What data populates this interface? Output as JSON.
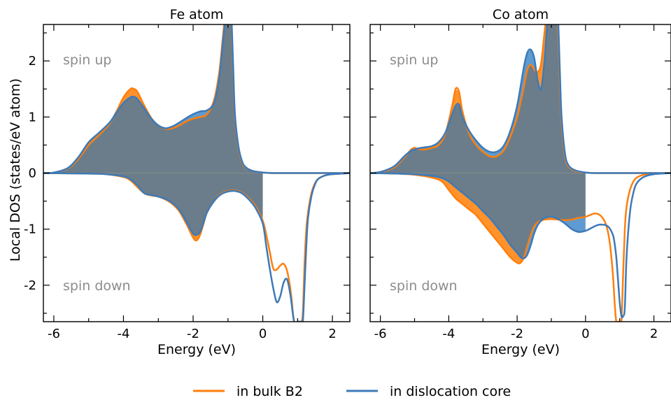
{
  "figure": {
    "ylabel": "Local DOS (states/eV atom)",
    "legend_placement": "bottom-center",
    "legend": [
      {
        "label": "in bulk B2",
        "color": "#ff7f0e"
      },
      {
        "label": "in dislocation core",
        "color": "#3d7ab8"
      }
    ]
  },
  "chart_data": [
    {
      "type": "line",
      "title": "Fe atom",
      "xlabel": "Energy (eV)",
      "ylabel": "Local DOS (states/eV atom)",
      "xlim": [
        -6.3,
        2.5
      ],
      "ylim": [
        -2.65,
        2.65
      ],
      "xticks": [
        -6,
        -4,
        -2,
        0,
        2
      ],
      "yticks": [
        -2,
        -1,
        0,
        1,
        2
      ],
      "xtick_labels": [
        "-6",
        "-4",
        "-2",
        "0",
        "2"
      ],
      "ytick_labels": [
        "-2",
        "-1",
        "0",
        "1",
        "2"
      ],
      "annotations": [
        "spin up",
        "spin down"
      ],
      "fermi_level": 0,
      "grid": false,
      "series": [
        {
          "name": "in bulk B2",
          "color": "#ff7f0e",
          "spin_up": {
            "x": [
              -6.3,
              -6.0,
              -5.6,
              -5.3,
              -5.0,
              -4.7,
              -4.4,
              -4.2,
              -4.0,
              -3.8,
              -3.7,
              -3.6,
              -3.4,
              -3.2,
              -3.0,
              -2.8,
              -2.6,
              -2.4,
              -2.2,
              -2.0,
              -1.8,
              -1.6,
              -1.4,
              -1.25,
              -1.15,
              -1.05,
              -1.0,
              -0.97,
              -0.93,
              -0.9,
              -0.85,
              -0.8,
              -0.7,
              -0.6,
              -0.5,
              -0.3,
              0.0,
              0.3,
              0.6,
              1.0,
              1.5,
              2.0,
              2.5
            ],
            "y": [
              0.0,
              0.01,
              0.08,
              0.25,
              0.5,
              0.68,
              0.88,
              1.1,
              1.35,
              1.5,
              1.5,
              1.45,
              1.2,
              0.98,
              0.85,
              0.79,
              0.8,
              0.85,
              0.92,
              0.97,
              1.0,
              1.05,
              1.3,
              1.8,
              2.4,
              3.0,
              3.0,
              3.0,
              3.0,
              2.7,
              1.8,
              1.0,
              0.45,
              0.2,
              0.1,
              0.04,
              0.01,
              0.0,
              0.0,
              0.0,
              0.0,
              0.0,
              0.0
            ]
          },
          "spin_down": {
            "x": [
              -6.3,
              -5.0,
              -4.5,
              -4.0,
              -3.8,
              -3.6,
              -3.4,
              -3.2,
              -3.0,
              -2.8,
              -2.6,
              -2.4,
              -2.2,
              -2.0,
              -1.9,
              -1.8,
              -1.7,
              -1.6,
              -1.4,
              -1.2,
              -1.0,
              -0.8,
              -0.6,
              -0.4,
              -0.2,
              0.0,
              0.1,
              0.2,
              0.3,
              0.4,
              0.5,
              0.6,
              0.7,
              0.8,
              0.9,
              1.0,
              1.05,
              1.1,
              1.15,
              1.2,
              1.25,
              1.3,
              1.4,
              1.5,
              1.6,
              1.8,
              2.0,
              2.5
            ],
            "y": [
              0.0,
              -0.01,
              -0.02,
              -0.07,
              -0.13,
              -0.25,
              -0.36,
              -0.4,
              -0.42,
              -0.47,
              -0.55,
              -0.68,
              -0.9,
              -1.15,
              -1.2,
              -1.1,
              -0.9,
              -0.7,
              -0.5,
              -0.37,
              -0.32,
              -0.31,
              -0.35,
              -0.45,
              -0.6,
              -0.85,
              -1.1,
              -1.4,
              -1.7,
              -1.72,
              -1.65,
              -1.62,
              -1.75,
              -2.1,
              -2.65,
              -2.65,
              -2.65,
              -2.65,
              -2.5,
              -1.6,
              -1.0,
              -0.7,
              -0.35,
              -0.18,
              -0.1,
              -0.04,
              -0.02,
              0.0
            ]
          }
        },
        {
          "name": "in dislocation core",
          "color": "#3d7ab8",
          "spin_up": {
            "x": [
              -6.3,
              -6.0,
              -5.6,
              -5.3,
              -5.0,
              -4.7,
              -4.4,
              -4.2,
              -4.0,
              -3.8,
              -3.7,
              -3.6,
              -3.4,
              -3.2,
              -3.0,
              -2.8,
              -2.6,
              -2.4,
              -2.2,
              -2.0,
              -1.8,
              -1.6,
              -1.4,
              -1.25,
              -1.15,
              -1.05,
              -1.0,
              -0.97,
              -0.93,
              -0.9,
              -0.85,
              -0.8,
              -0.7,
              -0.6,
              -0.5,
              -0.3,
              0.0,
              0.3,
              0.6,
              1.0,
              1.5,
              2.0,
              2.5
            ],
            "y": [
              0.0,
              0.01,
              0.09,
              0.28,
              0.55,
              0.72,
              0.9,
              1.08,
              1.25,
              1.35,
              1.36,
              1.32,
              1.15,
              0.97,
              0.85,
              0.8,
              0.83,
              0.9,
              0.98,
              1.05,
              1.1,
              1.12,
              1.25,
              1.7,
              2.3,
              2.9,
              3.0,
              3.0,
              3.0,
              2.8,
              1.9,
              1.05,
              0.48,
              0.22,
              0.11,
              0.04,
              0.01,
              0.0,
              0.0,
              0.0,
              0.0,
              0.0,
              0.0
            ]
          },
          "spin_down": {
            "x": [
              -6.3,
              -5.0,
              -4.5,
              -4.0,
              -3.8,
              -3.6,
              -3.4,
              -3.2,
              -3.0,
              -2.8,
              -2.6,
              -2.4,
              -2.2,
              -2.0,
              -1.9,
              -1.8,
              -1.7,
              -1.6,
              -1.4,
              -1.2,
              -1.0,
              -0.8,
              -0.6,
              -0.4,
              -0.2,
              0.0,
              0.1,
              0.2,
              0.3,
              0.4,
              0.5,
              0.6,
              0.7,
              0.8,
              0.9,
              1.0,
              1.05,
              1.1,
              1.15,
              1.2,
              1.25,
              1.3,
              1.4,
              1.5,
              1.6,
              1.8,
              2.0,
              2.5
            ],
            "y": [
              0.0,
              -0.01,
              -0.02,
              -0.06,
              -0.11,
              -0.22,
              -0.36,
              -0.39,
              -0.42,
              -0.46,
              -0.53,
              -0.65,
              -0.86,
              -1.08,
              -1.1,
              -1.05,
              -0.88,
              -0.7,
              -0.5,
              -0.38,
              -0.33,
              -0.32,
              -0.36,
              -0.47,
              -0.63,
              -0.9,
              -1.3,
              -1.7,
              -2.05,
              -2.3,
              -2.2,
              -1.95,
              -1.9,
              -2.2,
              -2.65,
              -2.65,
              -2.65,
              -2.65,
              -2.65,
              -2.0,
              -1.3,
              -0.8,
              -0.4,
              -0.2,
              -0.1,
              -0.04,
              -0.02,
              0.0
            ]
          }
        }
      ]
    },
    {
      "type": "line",
      "title": "Co atom",
      "xlabel": "Energy (eV)",
      "ylabel": "",
      "xlim": [
        -6.3,
        2.5
      ],
      "ylim": [
        -2.65,
        2.65
      ],
      "xticks": [
        -6,
        -4,
        -2,
        0,
        2
      ],
      "yticks": [
        -2,
        -1,
        0,
        1,
        2
      ],
      "xtick_labels": [
        "-6",
        "-4",
        "-2",
        "0",
        "2"
      ],
      "ytick_labels": [],
      "annotations": [
        "spin up",
        "spin down"
      ],
      "fermi_level": 0,
      "grid": false,
      "series": [
        {
          "name": "in bulk B2",
          "color": "#ff7f0e",
          "spin_up": {
            "x": [
              -6.3,
              -6.0,
              -5.6,
              -5.3,
              -5.1,
              -5.0,
              -4.9,
              -4.7,
              -4.5,
              -4.3,
              -4.1,
              -3.9,
              -3.8,
              -3.7,
              -3.6,
              -3.4,
              -3.2,
              -3.0,
              -2.8,
              -2.6,
              -2.4,
              -2.2,
              -2.0,
              -1.8,
              -1.7,
              -1.6,
              -1.5,
              -1.4,
              -1.3,
              -1.2,
              -1.1,
              -1.0,
              -0.95,
              -0.9,
              -0.85,
              -0.8,
              -0.75,
              -0.7,
              -0.6,
              -0.5,
              -0.3,
              0.0,
              0.3,
              0.6,
              1.0,
              1.5,
              2.0,
              2.5
            ],
            "y": [
              0.0,
              0.02,
              0.1,
              0.28,
              0.42,
              0.45,
              0.43,
              0.42,
              0.45,
              0.5,
              0.7,
              1.2,
              1.5,
              1.45,
              1.1,
              0.7,
              0.5,
              0.38,
              0.3,
              0.3,
              0.4,
              0.65,
              1.0,
              1.55,
              1.85,
              1.93,
              1.85,
              1.8,
              1.95,
              2.5,
              3.0,
              3.0,
              3.0,
              3.0,
              3.0,
              2.5,
              1.6,
              0.9,
              0.3,
              0.12,
              0.04,
              0.01,
              0.0,
              0.0,
              0.0,
              0.0,
              0.0,
              0.0
            ]
          },
          "spin_down": {
            "x": [
              -6.3,
              -5.5,
              -5.0,
              -4.5,
              -4.2,
              -4.0,
              -3.8,
              -3.6,
              -3.4,
              -3.2,
              -3.0,
              -2.8,
              -2.6,
              -2.4,
              -2.2,
              -2.0,
              -1.9,
              -1.8,
              -1.7,
              -1.6,
              -1.5,
              -1.4,
              -1.3,
              -1.2,
              -1.0,
              -0.8,
              -0.6,
              -0.4,
              -0.2,
              0.0,
              0.2,
              0.3,
              0.4,
              0.5,
              0.6,
              0.7,
              0.8,
              0.85,
              0.9,
              0.95,
              1.0,
              1.05,
              1.1,
              1.15,
              1.2,
              1.3,
              1.4,
              1.5,
              1.7,
              2.0,
              2.5
            ],
            "y": [
              0.0,
              -0.01,
              -0.03,
              -0.08,
              -0.15,
              -0.3,
              -0.45,
              -0.55,
              -0.65,
              -0.75,
              -0.9,
              -1.05,
              -1.2,
              -1.35,
              -1.5,
              -1.6,
              -1.6,
              -1.5,
              -1.3,
              -1.1,
              -0.95,
              -0.88,
              -0.85,
              -0.83,
              -0.82,
              -0.83,
              -0.84,
              -0.83,
              -0.8,
              -0.78,
              -0.73,
              -0.72,
              -0.74,
              -0.8,
              -0.92,
              -1.2,
              -1.8,
              -2.3,
              -2.65,
              -2.65,
              -2.65,
              -2.65,
              -1.8,
              -1.0,
              -0.6,
              -0.3,
              -0.15,
              -0.08,
              -0.03,
              -0.01,
              0.0
            ]
          }
        },
        {
          "name": "in dislocation core",
          "color": "#3d7ab8",
          "spin_up": {
            "x": [
              -6.3,
              -6.0,
              -5.6,
              -5.3,
              -5.1,
              -5.0,
              -4.9,
              -4.7,
              -4.5,
              -4.3,
              -4.1,
              -3.9,
              -3.8,
              -3.7,
              -3.6,
              -3.4,
              -3.2,
              -3.0,
              -2.8,
              -2.6,
              -2.4,
              -2.2,
              -2.0,
              -1.8,
              -1.7,
              -1.6,
              -1.5,
              -1.4,
              -1.3,
              -1.2,
              -1.1,
              -1.0,
              -0.95,
              -0.9,
              -0.85,
              -0.8,
              -0.75,
              -0.7,
              -0.6,
              -0.5,
              -0.3,
              0.0,
              0.3,
              0.6,
              1.0,
              1.5,
              2.0,
              2.5
            ],
            "y": [
              0.0,
              0.02,
              0.12,
              0.3,
              0.4,
              0.42,
              0.44,
              0.46,
              0.48,
              0.55,
              0.72,
              1.05,
              1.2,
              1.22,
              1.0,
              0.75,
              0.58,
              0.45,
              0.38,
              0.38,
              0.48,
              0.75,
              1.2,
              1.9,
              2.15,
              2.2,
              2.05,
              1.65,
              1.5,
              2.0,
              2.8,
              3.0,
              3.0,
              3.0,
              3.0,
              2.7,
              1.8,
              1.0,
              0.35,
              0.14,
              0.05,
              0.01,
              0.0,
              0.0,
              0.0,
              0.0,
              0.0,
              0.0
            ]
          },
          "spin_down": {
            "x": [
              -6.3,
              -5.5,
              -5.0,
              -4.5,
              -4.2,
              -4.0,
              -3.8,
              -3.6,
              -3.4,
              -3.2,
              -3.0,
              -2.8,
              -2.6,
              -2.4,
              -2.2,
              -2.0,
              -1.9,
              -1.8,
              -1.7,
              -1.6,
              -1.5,
              -1.4,
              -1.3,
              -1.2,
              -1.0,
              -0.8,
              -0.6,
              -0.4,
              -0.2,
              0.0,
              0.2,
              0.3,
              0.4,
              0.5,
              0.6,
              0.7,
              0.8,
              0.85,
              0.9,
              0.95,
              1.0,
              1.05,
              1.1,
              1.15,
              1.2,
              1.3,
              1.4,
              1.5,
              1.7,
              2.0,
              2.5
            ],
            "y": [
              0.0,
              -0.01,
              -0.02,
              -0.05,
              -0.09,
              -0.15,
              -0.25,
              -0.35,
              -0.45,
              -0.55,
              -0.68,
              -0.8,
              -0.95,
              -1.1,
              -1.28,
              -1.42,
              -1.5,
              -1.52,
              -1.45,
              -1.28,
              -1.07,
              -0.93,
              -0.85,
              -0.8,
              -0.78,
              -0.82,
              -0.9,
              -1.0,
              -1.05,
              -1.03,
              -0.97,
              -0.94,
              -0.92,
              -0.92,
              -0.93,
              -0.98,
              -1.1,
              -1.25,
              -1.5,
              -1.9,
              -2.3,
              -2.55,
              -2.55,
              -2.4,
              -1.5,
              -0.7,
              -0.35,
              -0.18,
              -0.07,
              -0.02,
              0.0
            ]
          }
        }
      ]
    }
  ]
}
